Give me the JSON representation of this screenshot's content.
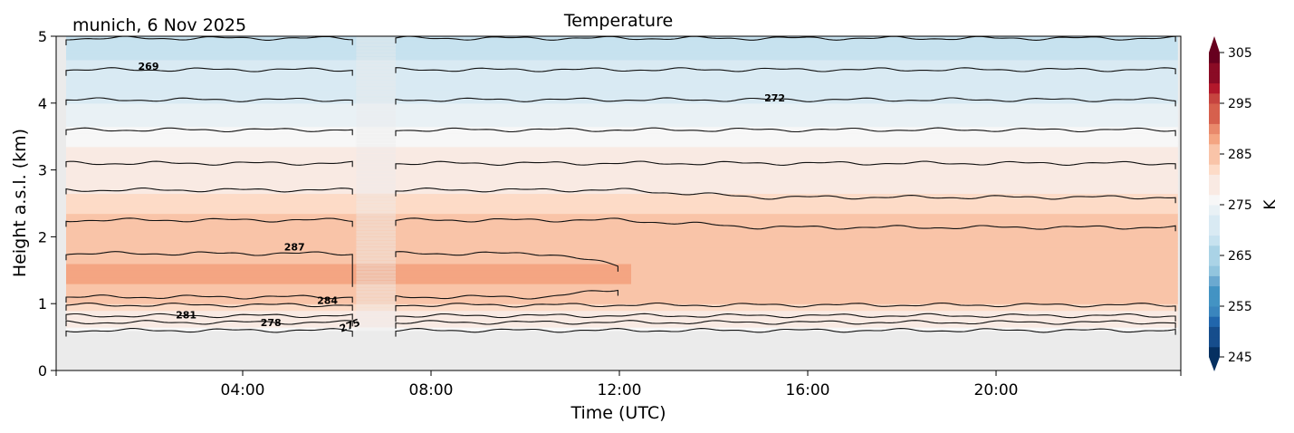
{
  "chart_data": {
    "type": "heatmap",
    "title": "Temperature",
    "subtitle": "munich, 6 Nov 2025",
    "xlabel": "Time (UTC)",
    "ylabel": "Height a.s.l. (km)",
    "xlim_hours": [
      0,
      23.9
    ],
    "ylim": [
      0,
      5
    ],
    "x_ticks": [
      {
        "hour": 4,
        "label": "04:00"
      },
      {
        "hour": 8,
        "label": "08:00"
      },
      {
        "hour": 12,
        "label": "12:00"
      },
      {
        "hour": 16,
        "label": "16:00"
      },
      {
        "hour": 20,
        "label": "20:00"
      }
    ],
    "y_ticks": [
      {
        "value": 0,
        "label": "0"
      },
      {
        "value": 1,
        "label": "1"
      },
      {
        "value": 2,
        "label": "2"
      },
      {
        "value": 3,
        "label": "3"
      },
      {
        "value": 4,
        "label": "4"
      },
      {
        "value": 5,
        "label": "5"
      }
    ],
    "data_segments_hours": [
      [
        0.25,
        6.4
      ],
      [
        7.25,
        23.85
      ]
    ],
    "data_bottom_km": 0.6,
    "missing_color": "#ebebeb",
    "colorbar": {
      "label": "K",
      "vmin": 245,
      "vmax": 305,
      "step": 2,
      "extend": "both",
      "ticks": [
        {
          "value": 245,
          "label": "245"
        },
        {
          "value": 255,
          "label": "255"
        },
        {
          "value": 265,
          "label": "265"
        },
        {
          "value": 275,
          "label": "275"
        },
        {
          "value": 285,
          "label": "285"
        },
        {
          "value": 295,
          "label": "295"
        },
        {
          "value": 305,
          "label": "305"
        }
      ],
      "colormap": [
        "#053061",
        "#164d8c",
        "#2166ac",
        "#3a85bd",
        "#4393c3",
        "#6ba9d0",
        "#92c5de",
        "#aad3e6",
        "#c7e2ef",
        "#d9eaf3",
        "#e9f1f5",
        "#f7f7f7",
        "#f9eae3",
        "#fddbc7",
        "#f9c4a8",
        "#f4a582",
        "#e9896b",
        "#d6604d",
        "#c6443f",
        "#b2182b",
        "#8a0b25",
        "#67001f"
      ]
    },
    "contour_levels_km": {
      "description": "temperature profile: height of isotherms (K) in km",
      "profile": [
        {
          "height": 0.6,
          "temp": 276
        },
        {
          "height": 1.0,
          "temp": 283
        },
        {
          "height": 1.4,
          "temp": 288
        },
        {
          "height": 1.8,
          "temp": 286
        },
        {
          "height": 2.0,
          "temp": 285
        },
        {
          "height": 2.5,
          "temp": 282
        },
        {
          "height": 3.0,
          "temp": 279
        },
        {
          "height": 3.5,
          "temp": 276
        },
        {
          "height": 4.0,
          "temp": 273
        },
        {
          "height": 4.5,
          "temp": 270
        },
        {
          "height": 5.0,
          "temp": 267
        }
      ]
    },
    "contour_lines": [
      {
        "level": 266,
        "height_km": 4.97
      },
      {
        "level": 269,
        "height_km": 4.5
      },
      {
        "level": 272,
        "height_km": 4.05
      },
      {
        "level": 275,
        "height_km": 3.6
      },
      {
        "level": 278,
        "height_km": 3.1
      },
      {
        "level": 281,
        "height_km": 2.7
      },
      {
        "level": 284,
        "height_km": 2.25
      },
      {
        "level": 287,
        "height_km": 1.75
      },
      {
        "level": 287,
        "height_km": 1.1
      },
      {
        "level": 284,
        "height_km": 0.98
      },
      {
        "level": 281,
        "height_km": 0.82
      },
      {
        "level": 278,
        "height_km": 0.72
      },
      {
        "level": 275,
        "height_km": 0.6
      }
    ],
    "contour_labels": [
      {
        "text": "269",
        "hour": 2.0,
        "height_km": 4.55
      },
      {
        "text": "272",
        "hour": 15.3,
        "height_km": 4.08
      },
      {
        "text": "287",
        "hour": 5.1,
        "height_km": 1.85
      },
      {
        "text": "284",
        "hour": 5.8,
        "height_km": 1.05
      },
      {
        "text": "281",
        "hour": 2.8,
        "height_km": 0.83
      },
      {
        "text": "278",
        "hour": 4.6,
        "height_km": 0.72
      },
      {
        "text": "275",
        "hour": 6.3,
        "height_km": 0.68
      }
    ],
    "warm_core": {
      "level": 287,
      "end_hour": 12.0,
      "bottom_km": 1.3,
      "top_km": 1.75
    },
    "grid": false
  }
}
